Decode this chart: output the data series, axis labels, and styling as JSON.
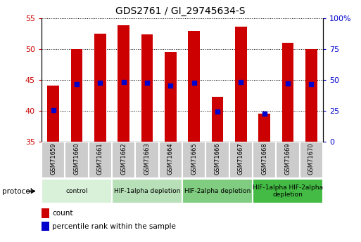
{
  "title": "GDS2761 / GI_29745634-S",
  "samples": [
    "GSM71659",
    "GSM71660",
    "GSM71661",
    "GSM71662",
    "GSM71663",
    "GSM71664",
    "GSM71665",
    "GSM71666",
    "GSM71667",
    "GSM71668",
    "GSM71669",
    "GSM71670"
  ],
  "counts": [
    44.1,
    50.0,
    52.5,
    53.8,
    52.4,
    49.5,
    52.9,
    42.2,
    53.6,
    39.5,
    51.0,
    50.0
  ],
  "percentile_ranks": [
    25.5,
    46.5,
    47.5,
    48.0,
    47.5,
    45.5,
    47.5,
    24.5,
    48.0,
    22.5,
    47.0,
    46.5
  ],
  "ylim_left": [
    35,
    55
  ],
  "ylim_right": [
    0,
    100
  ],
  "yticks_left": [
    35,
    40,
    45,
    50,
    55
  ],
  "yticks_right": [
    0,
    25,
    50,
    75,
    100
  ],
  "ytick_labels_right": [
    "0",
    "25",
    "50",
    "75",
    "100%"
  ],
  "bar_color": "#cc0000",
  "dot_color": "#0000cc",
  "bar_width": 0.5,
  "bar_bottom": 35,
  "groups": [
    {
      "label": "control",
      "start": 0,
      "end": 3,
      "color": "#d9f0d9"
    },
    {
      "label": "HIF-1alpha depletion",
      "start": 3,
      "end": 6,
      "color": "#b8e0b8"
    },
    {
      "label": "HIF-2alpha depletion",
      "start": 6,
      "end": 9,
      "color": "#80cc80"
    },
    {
      "label": "HIF-1alpha HIF-2alpha\ndepletion",
      "start": 9,
      "end": 12,
      "color": "#44bb44"
    }
  ],
  "protocol_label": "protocol",
  "legend_count_label": "count",
  "legend_percentile_label": "percentile rank within the sample",
  "background_plot": "#ffffff",
  "background_sample_bar": "#cccccc",
  "left_tick_color": "#cc0000",
  "right_tick_color": "#0000cc"
}
